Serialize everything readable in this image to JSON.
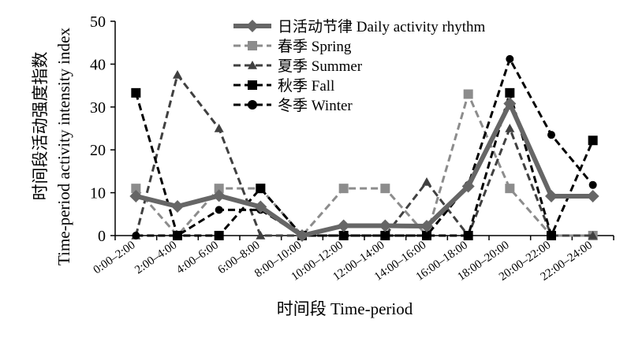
{
  "chart_data": {
    "type": "line",
    "categories": [
      "0:00–2:00",
      "2:00–4:00",
      "4:00–6:00",
      "6:00–8:00",
      "8:00–10:00",
      "10:00–12:00",
      "12:00–14:00",
      "14:00–16:00",
      "16:00–18:00",
      "18:00–20:00",
      "20:00–22:00",
      "22:00–24:00"
    ],
    "xlabel": "时间段 Time-period",
    "ylabel_zh": "时间段活动强度指数",
    "ylabel_en": "Time-period activity intensity index",
    "ylim": [
      0,
      50
    ],
    "yticks": [
      0,
      10,
      20,
      30,
      40,
      50
    ],
    "grid": false,
    "legend_position": "top-center",
    "series": [
      {
        "name": "日活动节律  Daily activity rhythm",
        "color": "#666666",
        "style": "solid-thick",
        "marker": "diamond",
        "values": [
          9.2,
          6.8,
          9.3,
          6.7,
          0,
          2.3,
          2.3,
          2.2,
          11.5,
          30.8,
          9.2,
          9.2
        ]
      },
      {
        "name": "春季  Spring",
        "color": "#8c8c8c",
        "style": "dash",
        "marker": "square",
        "values": [
          11,
          0,
          11,
          11,
          0,
          11,
          11,
          0,
          33,
          11,
          0,
          0
        ]
      },
      {
        "name": "夏季  Summer",
        "color": "#404040",
        "style": "dash",
        "marker": "triangle",
        "values": [
          0,
          37.5,
          25,
          0,
          0,
          0,
          0,
          12.5,
          0,
          25,
          0,
          0
        ]
      },
      {
        "name": "秋季  Fall",
        "color": "#000000",
        "style": "dash",
        "marker": "square",
        "values": [
          33.3,
          0,
          0,
          11,
          0,
          0,
          0,
          0,
          0,
          33.3,
          0,
          22.2
        ]
      },
      {
        "name": "冬季  Winter",
        "color": "#000000",
        "style": "dash",
        "marker": "circle",
        "values": [
          0,
          0,
          6,
          6,
          0,
          0,
          0,
          0,
          11.8,
          41.2,
          23.5,
          11.8
        ]
      }
    ]
  }
}
